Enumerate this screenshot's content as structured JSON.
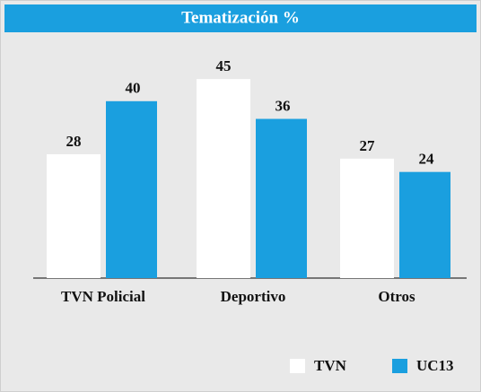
{
  "chart_data": {
    "type": "bar",
    "title": "Tematización %",
    "categories": [
      "TVN Policial",
      "Deportivo",
      "Otros"
    ],
    "series": [
      {
        "name": "TVN",
        "color": "#ffffff",
        "values": [
          28,
          45,
          27
        ]
      },
      {
        "name": "UC13",
        "color": "#1a9fdf",
        "values": [
          40,
          36,
          24
        ]
      }
    ],
    "legend": "bottom-right"
  }
}
